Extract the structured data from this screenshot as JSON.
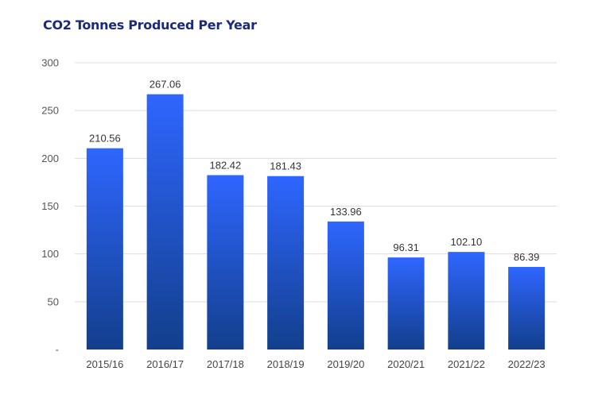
{
  "chart_data": {
    "type": "bar",
    "title": "CO2 Tonnes Produced Per Year",
    "xlabel": "",
    "ylabel": "",
    "categories": [
      "2015/16",
      "2016/17",
      "2017/18",
      "2018/19",
      "2019/20",
      "2020/21",
      "2021/22",
      "2022/23"
    ],
    "values": [
      210.56,
      267.06,
      182.42,
      181.43,
      133.96,
      96.31,
      102.1,
      86.39
    ],
    "data_labels": [
      "210.56",
      "267.06",
      "182.42",
      "181.43",
      "133.96",
      "96.31",
      "102.10",
      "86.39"
    ],
    "ylim": [
      0,
      300
    ],
    "y_ticks": [
      0,
      50,
      100,
      150,
      200,
      250,
      300
    ],
    "y_tick_labels": [
      "-",
      "50",
      "100",
      "150",
      "200",
      "250",
      "300"
    ],
    "grid": true,
    "legend": "none",
    "colors": {
      "bar_top": "#2f66ff",
      "bar_bottom": "#123f8c",
      "title": "#1b2a7a"
    }
  }
}
